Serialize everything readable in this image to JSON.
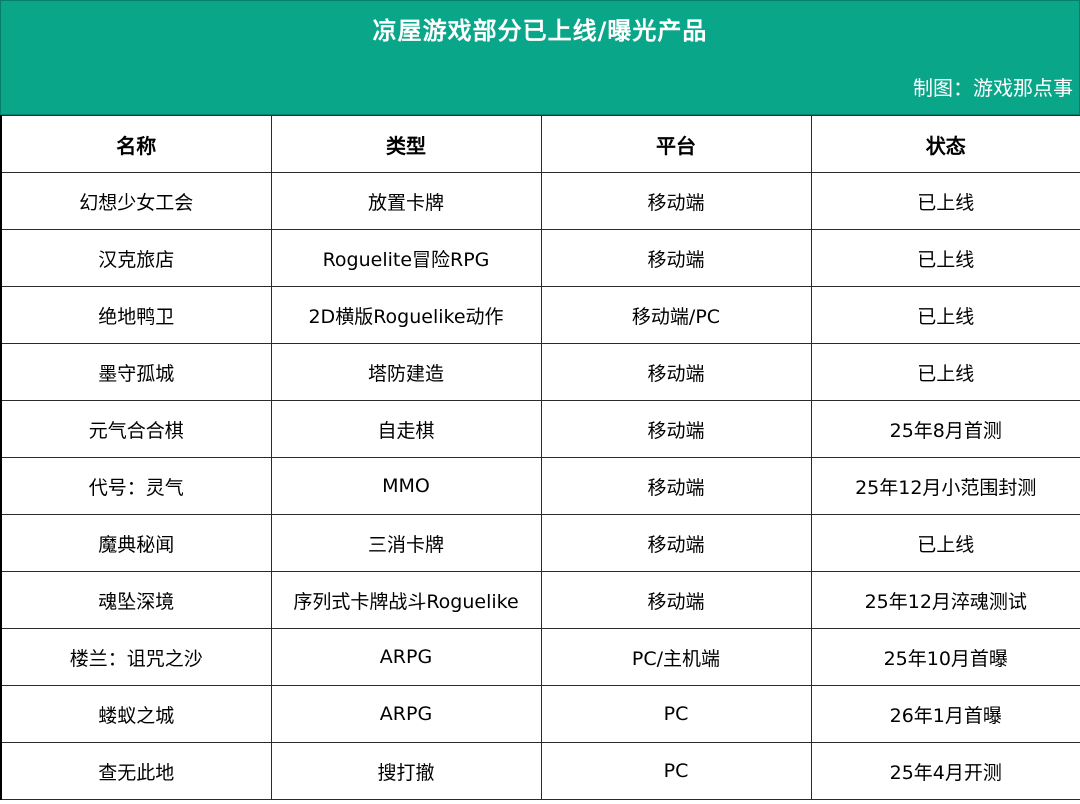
{
  "header": {
    "title": "凉屋游戏部分已上线/曝光产品",
    "credit": "制图：游戏那点事"
  },
  "colors": {
    "header_bg": "#0aa68a",
    "header_text": "#ffffff",
    "border": "#2b2b2b"
  },
  "table": {
    "columns": [
      "名称",
      "类型",
      "平台",
      "状态"
    ],
    "rows": [
      [
        "幻想少女工会",
        "放置卡牌",
        "移动端",
        "已上线"
      ],
      [
        "汉克旅店",
        "Roguelite冒险RPG",
        "移动端",
        "已上线"
      ],
      [
        "绝地鸭卫",
        "2D横版Roguelike动作",
        "移动端/PC",
        "已上线"
      ],
      [
        "墨守孤城",
        "塔防建造",
        "移动端",
        "已上线"
      ],
      [
        "元气合合棋",
        "自走棋",
        "移动端",
        "25年8月首测"
      ],
      [
        "代号：灵气",
        "MMO",
        "移动端",
        "25年12月小范围封测"
      ],
      [
        "魔典秘闻",
        "三消卡牌",
        "移动端",
        "已上线"
      ],
      [
        "魂坠深境",
        "序列式卡牌战斗Roguelike",
        "移动端",
        "25年12月淬魂测试"
      ],
      [
        "楼兰：诅咒之沙",
        "ARPG",
        "PC/主机端",
        "25年10月首曝"
      ],
      [
        "蝼蚁之城",
        "ARPG",
        "PC",
        "26年1月首曝"
      ],
      [
        "查无此地",
        "搜打撤",
        "PC",
        "25年4月开测"
      ]
    ]
  }
}
